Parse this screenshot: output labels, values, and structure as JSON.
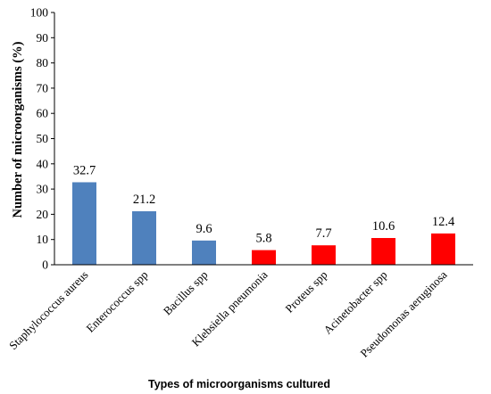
{
  "chart_data": {
    "type": "bar",
    "categories": [
      "Staphylococcus aureus",
      "Enterococcus spp",
      "Bacillus spp",
      "Klebsiella pneumonia",
      "Proteus spp",
      "Acinetobacter spp",
      "Pseudomonas aeruginosa"
    ],
    "values": [
      32.7,
      21.2,
      9.6,
      5.8,
      7.7,
      10.6,
      12.4
    ],
    "data_labels": [
      "32.7",
      "21.2",
      "9.6",
      "5.8",
      "7.7",
      "10.6",
      "12.4"
    ],
    "bar_colors": [
      "#4f81bd",
      "#4f81bd",
      "#4f81bd",
      "#ff0000",
      "#ff0000",
      "#ff0000",
      "#ff0000"
    ],
    "title": "",
    "xlabel": "Types of microorganisms cultured",
    "ylabel": "Number of microorganisms (%)",
    "ylim": [
      0,
      100
    ],
    "yticks": [
      0,
      10,
      20,
      30,
      40,
      50,
      60,
      70,
      80,
      90,
      100
    ],
    "grid": false,
    "legend": "none"
  }
}
